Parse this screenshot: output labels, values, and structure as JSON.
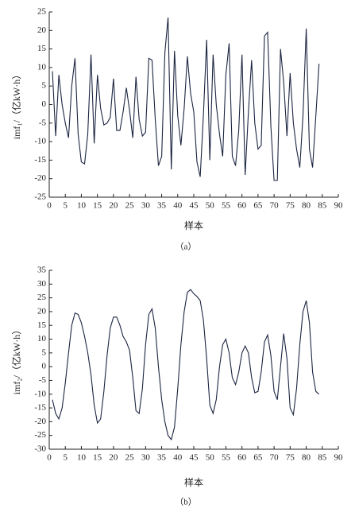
{
  "chart_data": [
    {
      "type": "line",
      "caption": "（a）",
      "xlabel": "样本",
      "ylabel": "imf₁/（亿kW·h）",
      "color": "#1c2541",
      "xlim": [
        0,
        90
      ],
      "xticks": [
        0,
        5,
        10,
        15,
        20,
        25,
        30,
        35,
        40,
        45,
        50,
        55,
        60,
        65,
        70,
        75,
        80,
        85,
        90
      ],
      "ylim": [
        -25,
        25
      ],
      "yticks": [
        -25,
        -20,
        -15,
        -10,
        -5,
        0,
        5,
        10,
        15,
        20,
        25
      ],
      "x": [
        1,
        2,
        3,
        4,
        5,
        6,
        7,
        8,
        9,
        10,
        11,
        12,
        13,
        14,
        15,
        16,
        17,
        18,
        19,
        20,
        21,
        22,
        23,
        24,
        25,
        26,
        27,
        28,
        29,
        30,
        31,
        32,
        33,
        34,
        35,
        36,
        37,
        38,
        39,
        40,
        41,
        42,
        43,
        44,
        45,
        46,
        47,
        48,
        49,
        50,
        51,
        52,
        53,
        54,
        55,
        56,
        57,
        58,
        59,
        60,
        61,
        62,
        63,
        64,
        65,
        66,
        67,
        68,
        69,
        70,
        71,
        72,
        73,
        74,
        75,
        76,
        77,
        78,
        79,
        80,
        81,
        82,
        83,
        84
      ],
      "values": [
        9,
        -8.5,
        8,
        0,
        -5,
        -9,
        5,
        12.5,
        -8,
        -15.5,
        -16,
        -8,
        13.5,
        -10.5,
        8,
        -1,
        -5.5,
        -5,
        -3.5,
        7,
        -7,
        -7,
        -2,
        4.5,
        -1.5,
        -9,
        7.5,
        -4,
        -8.5,
        -7.5,
        12.5,
        12,
        -4,
        -16.5,
        -14,
        14,
        23.5,
        -17.5,
        14.5,
        -3,
        -11,
        -1,
        13,
        3,
        -2,
        -15.5,
        -19.5,
        -3,
        17.5,
        -15,
        13.5,
        0,
        -8,
        -14,
        8,
        16.5,
        -14,
        -16.5,
        -7,
        13.5,
        -19,
        -2,
        12,
        -5,
        -12,
        -11,
        18.5,
        19.5,
        -6,
        -20.5,
        -20.5,
        15,
        6,
        -8.5,
        8.5,
        -5,
        -12,
        -17,
        -3,
        20.5,
        -12,
        -17,
        -3,
        11
      ]
    },
    {
      "type": "line",
      "caption": "（b）",
      "xlabel": "样本",
      "ylabel": "imf₂/（亿kW·h）",
      "color": "#1c2541",
      "xlim": [
        0,
        90
      ],
      "xticks": [
        0,
        5,
        10,
        15,
        20,
        25,
        30,
        35,
        40,
        45,
        50,
        55,
        60,
        65,
        70,
        75,
        80,
        85,
        90
      ],
      "ylim": [
        -30,
        35
      ],
      "yticks": [
        -30,
        -25,
        -20,
        -15,
        -10,
        -5,
        0,
        5,
        10,
        15,
        20,
        25,
        30,
        35
      ],
      "x": [
        1,
        2,
        3,
        4,
        5,
        6,
        7,
        8,
        9,
        10,
        11,
        12,
        13,
        14,
        15,
        16,
        17,
        18,
        19,
        20,
        21,
        22,
        23,
        24,
        25,
        26,
        27,
        28,
        29,
        30,
        31,
        32,
        33,
        34,
        35,
        36,
        37,
        38,
        39,
        40,
        41,
        42,
        43,
        44,
        45,
        46,
        47,
        48,
        49,
        50,
        51,
        52,
        53,
        54,
        55,
        56,
        57,
        58,
        59,
        60,
        61,
        62,
        63,
        64,
        65,
        66,
        67,
        68,
        69,
        70,
        71,
        72,
        73,
        74,
        75,
        76,
        77,
        78,
        79,
        80,
        81,
        82,
        83,
        84
      ],
      "values": [
        -12,
        -17,
        -19,
        -15,
        -6,
        5,
        15,
        19.5,
        19,
        16,
        11,
        5,
        -3,
        -14,
        -20.5,
        -19,
        -9,
        4,
        14,
        18,
        18,
        15,
        11,
        9,
        6,
        -4,
        -16,
        -17,
        -8,
        8,
        19,
        21,
        14,
        0,
        -12,
        -20,
        -25,
        -26.5,
        -22,
        -8,
        8,
        20,
        27,
        28,
        26.5,
        25.5,
        24,
        17,
        3,
        -14,
        -17,
        -12,
        0,
        8,
        10,
        5,
        -4,
        -6.5,
        -2,
        5,
        7.5,
        5,
        -4,
        -9.5,
        -9,
        -2,
        9,
        11.5,
        4,
        -9,
        -12,
        0,
        12,
        3,
        -15,
        -17.5,
        -8,
        8,
        20,
        24,
        16,
        -2,
        -9,
        -10
      ]
    }
  ]
}
